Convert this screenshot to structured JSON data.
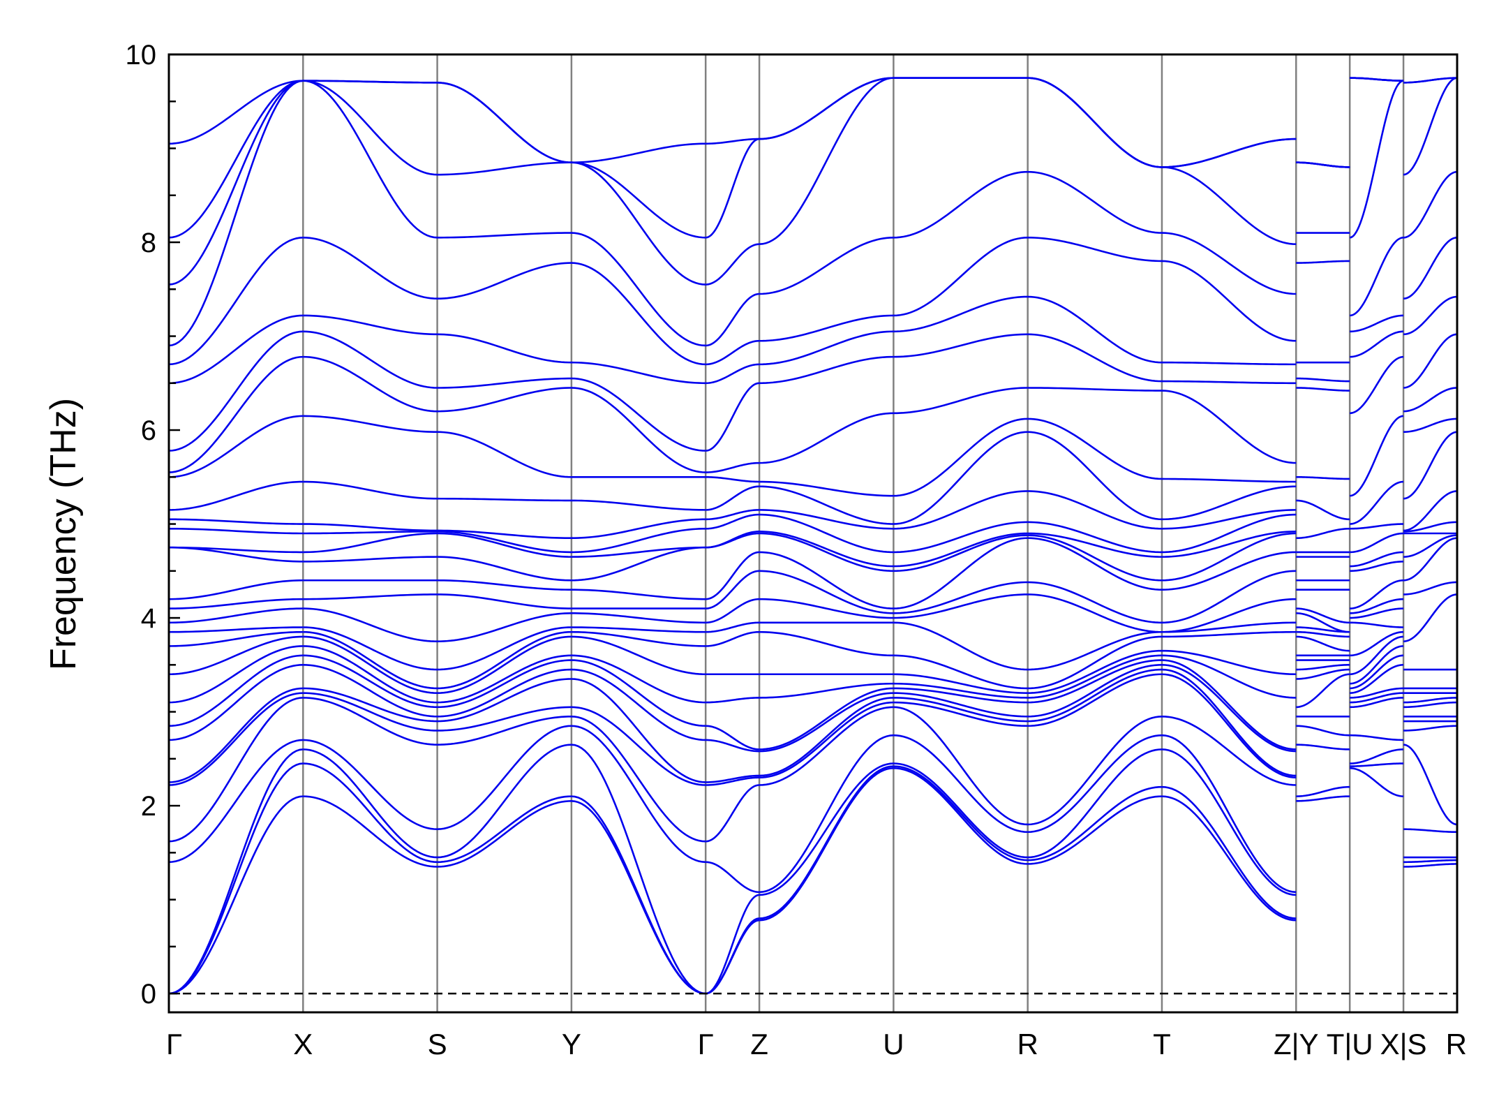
{
  "chart_data": {
    "type": "line",
    "title": "",
    "xlabel": "",
    "ylabel": "Frequency (THz)",
    "ylim": [
      -0.2,
      10
    ],
    "yticks": [
      0,
      2,
      4,
      6,
      8,
      10
    ],
    "y_minor_step": 0.5,
    "grid": false,
    "legend": "none",
    "line_color": "#0000ee",
    "kpoint_line_color": "#808080",
    "zero_line": {
      "y": 0,
      "style": "dashed",
      "color": "#000000"
    },
    "high_symmetry_points": [
      {
        "label": "Γ",
        "x": 0.0
      },
      {
        "label": "X",
        "x": 1.0
      },
      {
        "label": "S",
        "x": 2.0
      },
      {
        "label": "Y",
        "x": 3.0
      },
      {
        "label": "Γ",
        "x": 4.0
      },
      {
        "label": "Z",
        "x": 4.4
      },
      {
        "label": "U",
        "x": 5.4
      },
      {
        "label": "R",
        "x": 6.4
      },
      {
        "label": "T",
        "x": 7.4
      },
      {
        "label": "Z|Y",
        "x": 8.4
      },
      {
        "label": "T|U",
        "x": 8.8
      },
      {
        "label": "X|S",
        "x": 9.2
      },
      {
        "label": "R",
        "x": 9.6
      }
    ],
    "segments": [
      {
        "from": 0.0,
        "to": 1.0,
        "start": [
          0,
          0,
          0,
          1.4,
          1.62,
          2.22,
          2.25,
          2.7,
          2.85,
          3.1,
          3.4,
          3.7,
          3.85,
          3.95,
          4.1,
          4.2,
          4.75,
          4.75,
          4.95,
          5.05,
          5.15,
          5.5,
          5.55,
          5.78,
          6.5,
          6.7,
          6.9,
          7.55,
          8.05,
          9.05
        ],
        "end": [
          2.1,
          2.45,
          2.6,
          2.7,
          3.15,
          3.2,
          3.25,
          3.5,
          3.6,
          3.7,
          3.8,
          3.85,
          3.9,
          4.1,
          4.2,
          4.4,
          4.6,
          4.7,
          4.9,
          5.0,
          5.45,
          6.15,
          6.78,
          7.05,
          7.22,
          8.05,
          9.72,
          9.72,
          9.72,
          9.72
        ]
      },
      {
        "from": 1.0,
        "to": 2.0,
        "start": [
          2.1,
          2.45,
          2.6,
          2.7,
          3.15,
          3.2,
          3.25,
          3.5,
          3.6,
          3.7,
          3.8,
          3.85,
          3.9,
          4.1,
          4.2,
          4.4,
          4.6,
          4.7,
          4.9,
          5.0,
          5.45,
          6.15,
          6.78,
          7.05,
          7.22,
          8.05,
          9.72,
          9.72,
          9.72,
          9.72
        ],
        "end": [
          1.35,
          1.4,
          1.45,
          1.75,
          2.65,
          2.8,
          2.9,
          2.95,
          3.05,
          3.1,
          3.2,
          3.25,
          3.45,
          3.75,
          4.25,
          4.4,
          4.65,
          4.9,
          4.92,
          4.93,
          5.27,
          5.98,
          6.2,
          6.45,
          7.02,
          7.4,
          8.05,
          8.72,
          9.7,
          9.7
        ]
      },
      {
        "from": 2.0,
        "to": 3.0,
        "start": [
          1.35,
          1.4,
          1.45,
          1.75,
          2.65,
          2.8,
          2.9,
          2.95,
          3.05,
          3.1,
          3.2,
          3.25,
          3.45,
          3.75,
          4.25,
          4.4,
          4.65,
          4.9,
          4.92,
          4.93,
          5.27,
          5.98,
          6.2,
          6.45,
          7.02,
          7.4,
          8.05,
          8.72,
          9.7,
          9.7
        ],
        "end": [
          2.05,
          2.1,
          2.65,
          2.85,
          2.95,
          3.05,
          3.35,
          3.45,
          3.55,
          3.6,
          3.8,
          3.85,
          3.9,
          4.05,
          4.1,
          4.3,
          4.4,
          4.65,
          4.7,
          4.85,
          5.25,
          5.5,
          6.45,
          6.55,
          6.72,
          7.78,
          8.1,
          8.85,
          8.85,
          8.85
        ]
      },
      {
        "from": 3.0,
        "to": 4.0,
        "start": [
          2.05,
          2.1,
          2.65,
          2.85,
          2.95,
          3.05,
          3.35,
          3.45,
          3.55,
          3.6,
          3.8,
          3.85,
          3.9,
          4.05,
          4.1,
          4.3,
          4.4,
          4.65,
          4.7,
          4.85,
          5.25,
          5.5,
          6.45,
          6.55,
          6.72,
          7.78,
          8.1,
          8.85,
          8.85,
          8.85
        ],
        "end": [
          0,
          0,
          0,
          1.4,
          1.62,
          2.22,
          2.25,
          2.7,
          2.85,
          3.1,
          3.4,
          3.7,
          3.85,
          3.95,
          4.1,
          4.2,
          4.75,
          4.75,
          4.95,
          5.05,
          5.15,
          5.5,
          5.55,
          5.78,
          6.5,
          6.7,
          6.9,
          7.55,
          8.05,
          9.05
        ]
      },
      {
        "from": 4.0,
        "to": 4.4,
        "start": [
          0,
          0,
          0,
          1.4,
          1.62,
          2.22,
          2.25,
          2.7,
          2.85,
          3.1,
          3.4,
          3.7,
          3.85,
          3.95,
          4.1,
          4.2,
          4.75,
          4.75,
          4.95,
          5.05,
          5.15,
          5.5,
          5.55,
          5.78,
          6.5,
          6.7,
          6.9,
          7.55,
          8.05,
          9.05
        ],
        "end": [
          0.78,
          0.8,
          1.05,
          1.08,
          2.22,
          2.3,
          2.32,
          2.58,
          2.6,
          3.15,
          3.4,
          3.85,
          3.95,
          4.2,
          4.5,
          4.7,
          4.9,
          4.92,
          5.1,
          5.15,
          5.4,
          5.45,
          5.65,
          6.5,
          6.7,
          6.95,
          7.45,
          7.98,
          9.1,
          9.1
        ]
      },
      {
        "from": 4.4,
        "to": 5.4,
        "start": [
          0.78,
          0.8,
          1.05,
          1.08,
          2.22,
          2.3,
          2.32,
          2.58,
          2.6,
          3.15,
          3.4,
          3.85,
          3.95,
          4.2,
          4.5,
          4.7,
          4.9,
          4.92,
          5.1,
          5.15,
          5.4,
          5.45,
          5.65,
          6.5,
          6.7,
          6.95,
          7.45,
          7.98,
          9.1,
          9.1
        ],
        "end": [
          2.4,
          2.42,
          2.45,
          2.75,
          3.05,
          3.1,
          3.15,
          3.2,
          3.25,
          3.3,
          3.4,
          3.6,
          3.95,
          4.0,
          4.05,
          4.1,
          4.5,
          4.55,
          4.7,
          4.95,
          5.0,
          5.3,
          6.18,
          6.78,
          7.05,
          7.22,
          8.05,
          9.75,
          9.75,
          9.75
        ]
      },
      {
        "from": 5.4,
        "to": 6.4,
        "start": [
          2.4,
          2.42,
          2.45,
          2.75,
          3.05,
          3.1,
          3.15,
          3.2,
          3.25,
          3.3,
          3.4,
          3.6,
          3.95,
          4.0,
          4.05,
          4.1,
          4.5,
          4.55,
          4.7,
          4.95,
          5.0,
          5.3,
          6.18,
          6.78,
          7.05,
          7.22,
          8.05,
          9.75,
          9.75,
          9.75
        ],
        "end": [
          1.38,
          1.42,
          1.45,
          1.72,
          1.8,
          2.85,
          2.9,
          2.95,
          3.1,
          3.15,
          3.2,
          3.25,
          3.45,
          4.25,
          4.38,
          4.85,
          4.88,
          4.9,
          5.02,
          5.35,
          5.98,
          6.12,
          6.45,
          7.02,
          7.42,
          8.05,
          8.75,
          9.75,
          9.75,
          9.75
        ]
      },
      {
        "from": 6.4,
        "to": 7.4,
        "start": [
          1.38,
          1.42,
          1.45,
          1.72,
          1.8,
          2.85,
          2.9,
          2.95,
          3.1,
          3.15,
          3.2,
          3.25,
          3.45,
          4.25,
          4.38,
          4.85,
          4.88,
          4.9,
          5.02,
          5.35,
          5.98,
          6.12,
          6.45,
          7.02,
          7.42,
          8.05,
          8.75,
          9.75,
          9.75,
          9.75
        ],
        "end": [
          2.1,
          2.2,
          2.6,
          2.75,
          2.95,
          3.4,
          3.45,
          3.5,
          3.55,
          3.6,
          3.65,
          3.8,
          3.85,
          3.85,
          3.95,
          4.3,
          4.4,
          4.65,
          4.7,
          4.95,
          5.05,
          5.48,
          6.42,
          6.52,
          6.72,
          7.8,
          8.1,
          8.8,
          8.8,
          8.8
        ]
      },
      {
        "from": 7.4,
        "to": 8.4,
        "start": [
          2.1,
          2.2,
          2.6,
          2.75,
          2.95,
          3.4,
          3.45,
          3.5,
          3.55,
          3.6,
          3.65,
          3.8,
          3.85,
          3.85,
          3.95,
          4.3,
          4.4,
          4.65,
          4.7,
          4.95,
          5.05,
          5.48,
          6.42,
          6.52,
          6.72,
          7.8,
          8.1,
          8.8,
          8.8,
          8.8
        ],
        "end": [
          0.78,
          0.8,
          1.05,
          1.08,
          2.22,
          2.3,
          2.32,
          2.58,
          2.6,
          3.15,
          3.4,
          3.85,
          3.95,
          4.2,
          4.5,
          4.7,
          4.9,
          4.92,
          5.1,
          5.15,
          5.4,
          5.45,
          5.65,
          6.5,
          6.7,
          6.95,
          7.45,
          7.98,
          9.1,
          9.1
        ]
      },
      {
        "from": 8.4,
        "to": 8.8,
        "start": [
          2.05,
          2.1,
          2.65,
          2.85,
          2.95,
          3.05,
          3.35,
          3.45,
          3.55,
          3.6,
          3.8,
          3.85,
          3.9,
          4.05,
          4.1,
          4.3,
          4.4,
          4.65,
          4.7,
          4.85,
          5.25,
          5.5,
          6.45,
          6.55,
          6.72,
          7.78,
          8.1,
          8.85,
          8.85,
          8.85
        ],
        "end": [
          2.1,
          2.2,
          2.6,
          2.75,
          2.95,
          3.4,
          3.45,
          3.5,
          3.55,
          3.6,
          3.65,
          3.8,
          3.85,
          3.85,
          3.95,
          4.3,
          4.4,
          4.65,
          4.7,
          4.95,
          5.05,
          5.48,
          6.42,
          6.52,
          6.72,
          7.8,
          8.1,
          8.8,
          8.8,
          8.8
        ]
      },
      {
        "from": 8.8,
        "to": 9.2,
        "start": [
          2.4,
          2.42,
          2.45,
          2.75,
          3.05,
          3.1,
          3.15,
          3.2,
          3.25,
          3.3,
          3.4,
          3.6,
          3.95,
          4.0,
          4.05,
          4.1,
          4.5,
          4.55,
          4.7,
          4.95,
          5.0,
          5.3,
          6.18,
          6.78,
          7.05,
          7.22,
          8.05,
          9.75,
          9.75,
          9.75
        ],
        "end": [
          2.1,
          2.45,
          2.6,
          2.7,
          3.15,
          3.2,
          3.25,
          3.5,
          3.6,
          3.7,
          3.8,
          3.85,
          3.9,
          4.1,
          4.2,
          4.4,
          4.6,
          4.7,
          4.9,
          5.0,
          5.45,
          6.15,
          6.78,
          7.05,
          7.22,
          8.05,
          9.72,
          9.72,
          9.72,
          9.72
        ]
      },
      {
        "from": 9.2,
        "to": 9.6,
        "start": [
          1.35,
          1.4,
          1.45,
          1.75,
          2.65,
          2.8,
          2.9,
          2.95,
          3.05,
          3.1,
          3.2,
          3.25,
          3.45,
          3.75,
          4.25,
          4.4,
          4.65,
          4.9,
          4.92,
          4.93,
          5.27,
          5.98,
          6.2,
          6.45,
          7.02,
          7.4,
          8.05,
          8.72,
          9.7,
          9.7
        ],
        "end": [
          1.38,
          1.42,
          1.45,
          1.72,
          1.8,
          2.85,
          2.9,
          2.95,
          3.1,
          3.15,
          3.2,
          3.25,
          3.45,
          4.25,
          4.38,
          4.85,
          4.88,
          4.9,
          5.02,
          5.35,
          5.98,
          6.12,
          6.45,
          7.02,
          7.42,
          8.05,
          8.75,
          9.75,
          9.75,
          9.75
        ]
      }
    ]
  }
}
